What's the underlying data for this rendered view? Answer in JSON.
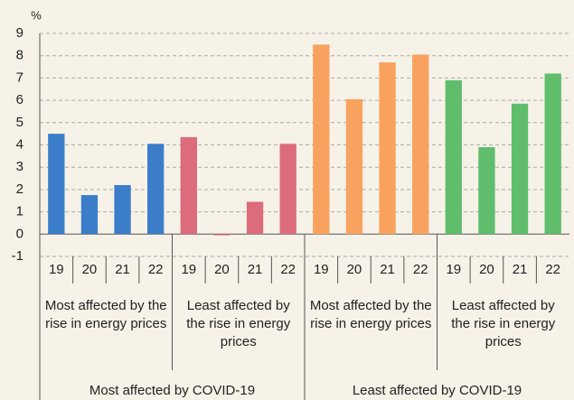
{
  "chart_data": {
    "type": "bar",
    "y_label": "%",
    "categories": [
      "19",
      "20",
      "21",
      "22"
    ],
    "series": [
      {
        "name": "Most affected by the rise in energy prices",
        "color": "#3b7dc8",
        "values": [
          4.5,
          1.75,
          2.2,
          4.05
        ]
      },
      {
        "name": "Least affected by the rise in energy prices",
        "color": "#dc6b7c",
        "values": [
          4.35,
          -0.05,
          1.45,
          4.05
        ]
      },
      {
        "name": "Most affected by the rise in energy prices",
        "color": "#f9a25f",
        "values": [
          8.5,
          6.05,
          7.7,
          8.05
        ]
      },
      {
        "name": "Least affected by the rise in energy prices",
        "color": "#5fbd6b",
        "values": [
          6.9,
          3.9,
          5.85,
          7.2
        ]
      }
    ],
    "outer_groups": [
      "Most affected by COVID-19",
      "Least affected by COVID-19"
    ],
    "ylim": [
      -1,
      9
    ],
    "yticks": [
      -1,
      0,
      1,
      2,
      3,
      4,
      5,
      6,
      7,
      8,
      9
    ],
    "grid": true
  }
}
